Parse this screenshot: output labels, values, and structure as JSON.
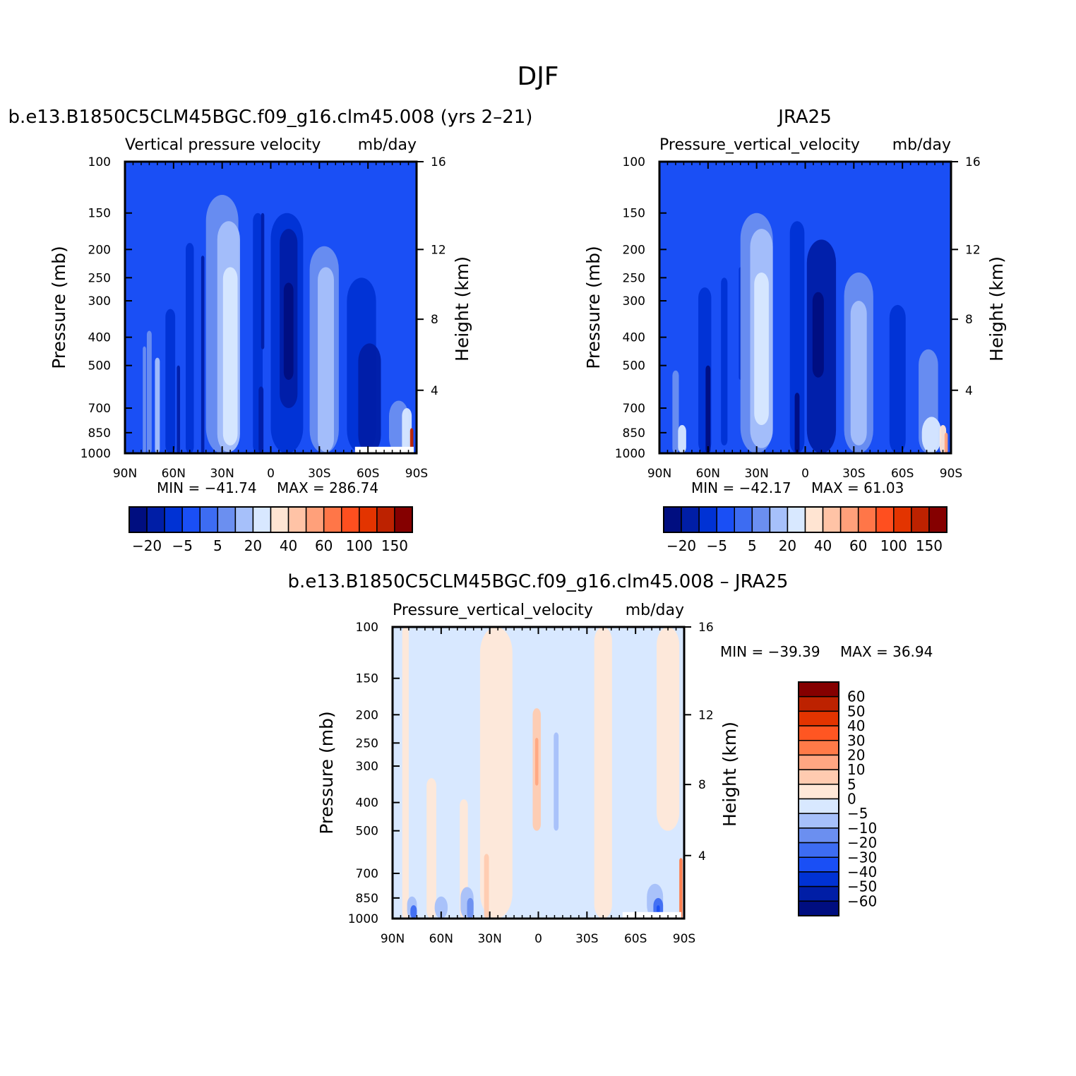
{
  "figure": {
    "title": "DJF"
  },
  "colors": {
    "main_scale": [
      "#000e80",
      "#001ea6",
      "#0032d4",
      "#1a4ff5",
      "#3d6cf2",
      "#6b8ff0",
      "#a6c0fa",
      "#d8e8ff",
      "#ffe4d2",
      "#ffc3a6",
      "#ffa07a",
      "#ff7648",
      "#ff4f1f",
      "#e33400",
      "#bd2200",
      "#850000"
    ],
    "diff_scale": [
      "#000e80",
      "#001ea6",
      "#0032d4",
      "#1a4ff5",
      "#3d6cf2",
      "#6b8ff0",
      "#a6c0fa",
      "#d8e8ff",
      "#ffe8d8",
      "#ffcbb0",
      "#ffa682",
      "#ff7a48",
      "#ff5622",
      "#e33400",
      "#bd2200",
      "#850000"
    ]
  },
  "chart_data": [
    {
      "type": "heatmap",
      "panel_title": "b.e13.B1850C5CLM45BGC.f09_g16.clm45.008 (yrs 2–21)",
      "variable": "Vertical pressure velocity",
      "units": "mb/day",
      "xlabel": "",
      "ylabel": "Pressure (mb)",
      "y2label": "Height (km)",
      "x_tick_labels": [
        "90N",
        "60N",
        "30N",
        "0",
        "30S",
        "60S",
        "90S"
      ],
      "x_ticks": [
        90,
        60,
        30,
        0,
        -30,
        -60,
        -90
      ],
      "y_ticks": [
        100,
        150,
        200,
        250,
        300,
        400,
        500,
        700,
        850,
        1000
      ],
      "y_scale": "log",
      "y2_ticks": [
        16,
        12,
        8,
        4
      ],
      "y2_ticks_pressure": [
        100,
        200,
        347,
        608
      ],
      "min": -41.74,
      "max": 286.74,
      "min_label": "MIN = −41.74",
      "max_label": "MAX = 286.74",
      "colorbar": {
        "orientation": "horizontal",
        "labels": [
          "−20",
          "−5",
          "5",
          "20",
          "40",
          "60",
          "100",
          "150"
        ]
      },
      "missing_region": {
        "lat_range": [
          -52,
          -90
        ],
        "pressure_range": [
          950,
          1000
        ]
      },
      "features": [
        {
          "lat": 78,
          "p_top": 430,
          "p_bot": 1000,
          "w": 2,
          "level": 5
        },
        {
          "lat": 75,
          "p_top": 380,
          "p_bot": 1000,
          "w": 3,
          "level": 5
        },
        {
          "lat": 70,
          "p_top": 470,
          "p_bot": 1000,
          "w": 3,
          "level": 6
        },
        {
          "lat": 62,
          "p_top": 320,
          "p_bot": 1000,
          "w": 6,
          "level": 2
        },
        {
          "lat": 57,
          "p_top": 500,
          "p_bot": 1000,
          "w": 2,
          "level": 1
        },
        {
          "lat": 50,
          "p_top": 190,
          "p_bot": 1000,
          "w": 5,
          "level": 2
        },
        {
          "lat": 42,
          "p_top": 210,
          "p_bot": 1000,
          "w": 2,
          "level": 1
        },
        {
          "lat": 30,
          "p_top": 130,
          "p_bot": 1000,
          "w": 20,
          "level": 5
        },
        {
          "lat": 26,
          "p_top": 160,
          "p_bot": 990,
          "w": 14,
          "level": 6
        },
        {
          "lat": 25,
          "p_top": 230,
          "p_bot": 940,
          "w": 9,
          "level": 7
        },
        {
          "lat": 8,
          "p_top": 150,
          "p_bot": 1000,
          "w": 6,
          "level": 2
        },
        {
          "lat": 6,
          "p_top": 590,
          "p_bot": 1000,
          "w": 3,
          "level": 1
        },
        {
          "lat": 5,
          "p_top": 150,
          "p_bot": 440,
          "w": 2,
          "level": 1
        },
        {
          "lat": -10,
          "p_top": 150,
          "p_bot": 1000,
          "w": 20,
          "level": 2
        },
        {
          "lat": -11,
          "p_top": 170,
          "p_bot": 700,
          "w": 11,
          "level": 1
        },
        {
          "lat": -11,
          "p_top": 260,
          "p_bot": 560,
          "w": 6,
          "level": 0
        },
        {
          "lat": -33,
          "p_top": 195,
          "p_bot": 1000,
          "w": 18,
          "level": 5
        },
        {
          "lat": -34,
          "p_top": 230,
          "p_bot": 990,
          "w": 10,
          "level": 6
        },
        {
          "lat": -56,
          "p_top": 250,
          "p_bot": 1000,
          "w": 18,
          "level": 2
        },
        {
          "lat": -61,
          "p_top": 420,
          "p_bot": 1000,
          "w": 14,
          "level": 1
        },
        {
          "lat": -79,
          "p_top": 660,
          "p_bot": 1000,
          "w": 12,
          "level": 5
        },
        {
          "lat": -84,
          "p_top": 700,
          "p_bot": 1000,
          "w": 6,
          "level": 7
        },
        {
          "lat": -87,
          "p_top": 820,
          "p_bot": 1000,
          "w": 2,
          "level": 14
        }
      ]
    },
    {
      "type": "heatmap",
      "panel_title": "JRA25",
      "variable": "Pressure_vertical_velocity",
      "units": "mb/day",
      "xlabel": "",
      "ylabel": "Pressure (mb)",
      "y2label": "Height (km)",
      "x_tick_labels": [
        "90N",
        "60N",
        "30N",
        "0",
        "30S",
        "60S",
        "90S"
      ],
      "x_ticks": [
        90,
        60,
        30,
        0,
        -30,
        -60,
        -90
      ],
      "y_ticks": [
        100,
        150,
        200,
        250,
        300,
        400,
        500,
        700,
        850,
        1000
      ],
      "y_scale": "log",
      "y2_ticks": [
        16,
        12,
        8,
        4
      ],
      "y2_ticks_pressure": [
        100,
        200,
        347,
        608
      ],
      "min": -42.17,
      "max": 61.03,
      "min_label": "MIN = −42.17",
      "max_label": "MAX =  61.03",
      "colorbar": {
        "orientation": "horizontal",
        "labels": [
          "−20",
          "−5",
          "5",
          "20",
          "40",
          "60",
          "100",
          "150"
        ]
      },
      "features": [
        {
          "lat": 80,
          "p_top": 520,
          "p_bot": 1000,
          "w": 4,
          "level": 5
        },
        {
          "lat": 76,
          "p_top": 800,
          "p_bot": 1000,
          "w": 5,
          "level": 7
        },
        {
          "lat": 62,
          "p_top": 270,
          "p_bot": 1000,
          "w": 8,
          "level": 2
        },
        {
          "lat": 60,
          "p_top": 500,
          "p_bot": 1000,
          "w": 3,
          "level": 0
        },
        {
          "lat": 50,
          "p_top": 250,
          "p_bot": 940,
          "w": 4,
          "level": 2
        },
        {
          "lat": 40,
          "p_top": 230,
          "p_bot": 560,
          "w": 2,
          "level": 2
        },
        {
          "lat": 30,
          "p_top": 150,
          "p_bot": 1000,
          "w": 20,
          "level": 5
        },
        {
          "lat": 27,
          "p_top": 170,
          "p_bot": 960,
          "w": 14,
          "level": 6
        },
        {
          "lat": 27,
          "p_top": 240,
          "p_bot": 800,
          "w": 9,
          "level": 7
        },
        {
          "lat": 5,
          "p_top": 160,
          "p_bot": 1000,
          "w": 9,
          "level": 2
        },
        {
          "lat": 5,
          "p_top": 620,
          "p_bot": 1000,
          "w": 3,
          "level": 0
        },
        {
          "lat": -10,
          "p_top": 185,
          "p_bot": 1000,
          "w": 18,
          "level": 1
        },
        {
          "lat": -8,
          "p_top": 280,
          "p_bot": 550,
          "w": 7,
          "level": 0
        },
        {
          "lat": -33,
          "p_top": 240,
          "p_bot": 1000,
          "w": 18,
          "level": 5
        },
        {
          "lat": -33,
          "p_top": 300,
          "p_bot": 940,
          "w": 10,
          "level": 6
        },
        {
          "lat": -57,
          "p_top": 310,
          "p_bot": 1000,
          "w": 10,
          "level": 2
        },
        {
          "lat": -76,
          "p_top": 440,
          "p_bot": 1000,
          "w": 12,
          "level": 5
        },
        {
          "lat": -78,
          "p_top": 750,
          "p_bot": 1000,
          "w": 12,
          "level": 7
        },
        {
          "lat": -85,
          "p_top": 800,
          "p_bot": 1000,
          "w": 4,
          "level": 8
        },
        {
          "lat": -87,
          "p_top": 850,
          "p_bot": 1000,
          "w": 2,
          "level": 10
        }
      ]
    },
    {
      "type": "heatmap",
      "panel_title": "b.e13.B1850C5CLM45BGC.f09_g16.clm45.008 – JRA25",
      "variable": "Pressure_vertical_velocity",
      "units": "mb/day",
      "xlabel": "",
      "ylabel": "Pressure (mb)",
      "y2label": "Height (km)",
      "x_tick_labels": [
        "90N",
        "60N",
        "30N",
        "0",
        "30S",
        "60S",
        "90S"
      ],
      "x_ticks": [
        90,
        60,
        30,
        0,
        -30,
        -60,
        -90
      ],
      "y_ticks": [
        100,
        150,
        200,
        250,
        300,
        400,
        500,
        700,
        850,
        1000
      ],
      "y_scale": "log",
      "y2_ticks": [
        16,
        12,
        8,
        4
      ],
      "y2_ticks_pressure": [
        100,
        200,
        347,
        608
      ],
      "min": -39.39,
      "max": 36.94,
      "min_label": "MIN = −39.39",
      "max_label": "MAX =   36.94",
      "colorbar": {
        "orientation": "vertical",
        "labels": [
          "60",
          "50",
          "40",
          "30",
          "20",
          "10",
          "5",
          "0",
          "−5",
          "−10",
          "−20",
          "−30",
          "−40",
          "−50",
          "−60"
        ]
      },
      "missing_region": {
        "lat_range": [
          -52,
          -90
        ],
        "pressure_range": [
          950,
          1000
        ]
      },
      "features": [
        {
          "lat": 82,
          "p_top": 100,
          "p_bot": 1000,
          "w": 4,
          "level": 8
        },
        {
          "lat": 66,
          "p_top": 330,
          "p_bot": 1000,
          "w": 6,
          "level": 8
        },
        {
          "lat": 46,
          "p_top": 390,
          "p_bot": 1000,
          "w": 5,
          "level": 8
        },
        {
          "lat": 26,
          "p_top": 100,
          "p_bot": 1000,
          "w": 20,
          "level": 8
        },
        {
          "lat": 32,
          "p_top": 600,
          "p_bot": 1000,
          "w": 3,
          "level": 9
        },
        {
          "lat": 1,
          "p_top": 190,
          "p_bot": 500,
          "w": 5,
          "level": 9
        },
        {
          "lat": 1,
          "p_top": 240,
          "p_bot": 350,
          "w": 2,
          "level": 10
        },
        {
          "lat": -11,
          "p_top": 230,
          "p_bot": 500,
          "w": 3,
          "level": 6
        },
        {
          "lat": -40,
          "p_top": 100,
          "p_bot": 1000,
          "w": 11,
          "level": 8
        },
        {
          "lat": -80,
          "p_top": 100,
          "p_bot": 500,
          "w": 14,
          "level": 8
        },
        {
          "lat": 78,
          "p_top": 840,
          "p_bot": 1000,
          "w": 6,
          "level": 6
        },
        {
          "lat": 77,
          "p_top": 900,
          "p_bot": 1000,
          "w": 4,
          "level": 4
        },
        {
          "lat": 60,
          "p_top": 840,
          "p_bot": 1000,
          "w": 8,
          "level": 6
        },
        {
          "lat": 44,
          "p_top": 780,
          "p_bot": 1000,
          "w": 8,
          "level": 6
        },
        {
          "lat": 42,
          "p_top": 850,
          "p_bot": 1000,
          "w": 4,
          "level": 5
        },
        {
          "lat": -72,
          "p_top": 760,
          "p_bot": 1000,
          "w": 10,
          "level": 6
        },
        {
          "lat": -74,
          "p_top": 850,
          "p_bot": 1000,
          "w": 6,
          "level": 4
        },
        {
          "lat": -74,
          "p_top": 900,
          "p_bot": 1000,
          "w": 2,
          "level": 3
        },
        {
          "lat": -88,
          "p_top": 620,
          "p_bot": 1000,
          "w": 2,
          "level": 11
        }
      ]
    }
  ]
}
